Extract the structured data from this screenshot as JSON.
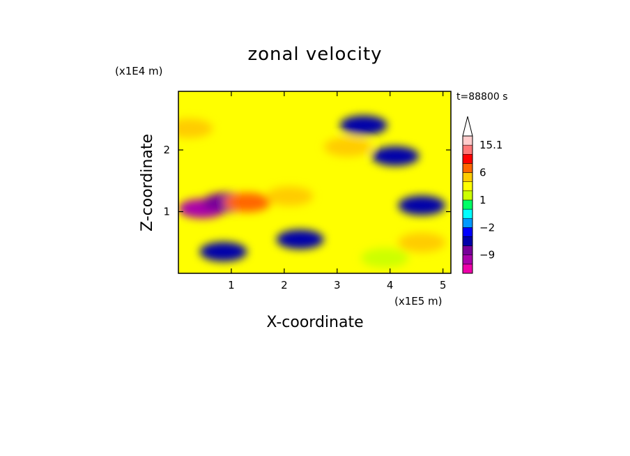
{
  "chart_data": {
    "type": "heatmap",
    "title": "zonal velocity",
    "xlabel": "X-coordinate",
    "ylabel": "Z-coordinate",
    "x_unit": "(x1E5 m)",
    "y_unit": "(x1E4 m)",
    "time_label": "t=88800 s",
    "xlim": [
      0,
      5.15
    ],
    "ylim": [
      0,
      2.95
    ],
    "x_ticks": [
      1,
      2,
      3,
      4,
      5
    ],
    "x_tick_labels": [
      "1",
      "2",
      "3",
      "4",
      "5"
    ],
    "y_ticks": [
      1,
      2
    ],
    "y_tick_labels": [
      "1",
      "2"
    ],
    "colorbar": {
      "levels": [
        -15,
        -12,
        -9,
        -6,
        -4,
        -2,
        -1,
        0,
        1,
        2,
        4,
        6,
        9,
        12,
        15.1
      ],
      "colors": [
        "#ee00aa",
        "#aa00aa",
        "#770099",
        "#0000aa",
        "#0000ff",
        "#0099ff",
        "#00ffff",
        "#00ff66",
        "#ccff00",
        "#ffff00",
        "#ffcc00",
        "#ff6600",
        "#ff0000",
        "#ff7777",
        "#ffcccc"
      ],
      "tick_labels": [
        "15.1",
        "6",
        "1",
        "−2",
        "−9"
      ],
      "extend": "max"
    },
    "field_features": [
      {
        "x": 0.45,
        "z": 1.05,
        "value": -12
      },
      {
        "x": 0.9,
        "z": 1.15,
        "value": -8
      },
      {
        "x": 0.85,
        "z": 0.35,
        "value": -5
      },
      {
        "x": 1.3,
        "z": 1.15,
        "value": 6
      },
      {
        "x": 2.1,
        "z": 1.25,
        "value": 4
      },
      {
        "x": 2.3,
        "z": 0.55,
        "value": -6
      },
      {
        "x": 3.5,
        "z": 2.4,
        "value": -5
      },
      {
        "x": 3.2,
        "z": 2.05,
        "value": 4
      },
      {
        "x": 4.1,
        "z": 1.9,
        "value": -6
      },
      {
        "x": 4.6,
        "z": 1.1,
        "value": -6
      },
      {
        "x": 4.6,
        "z": 0.5,
        "value": 4
      },
      {
        "x": 3.9,
        "z": 0.25,
        "value": 1
      },
      {
        "x": 0.2,
        "z": 2.35,
        "value": 4
      }
    ]
  }
}
